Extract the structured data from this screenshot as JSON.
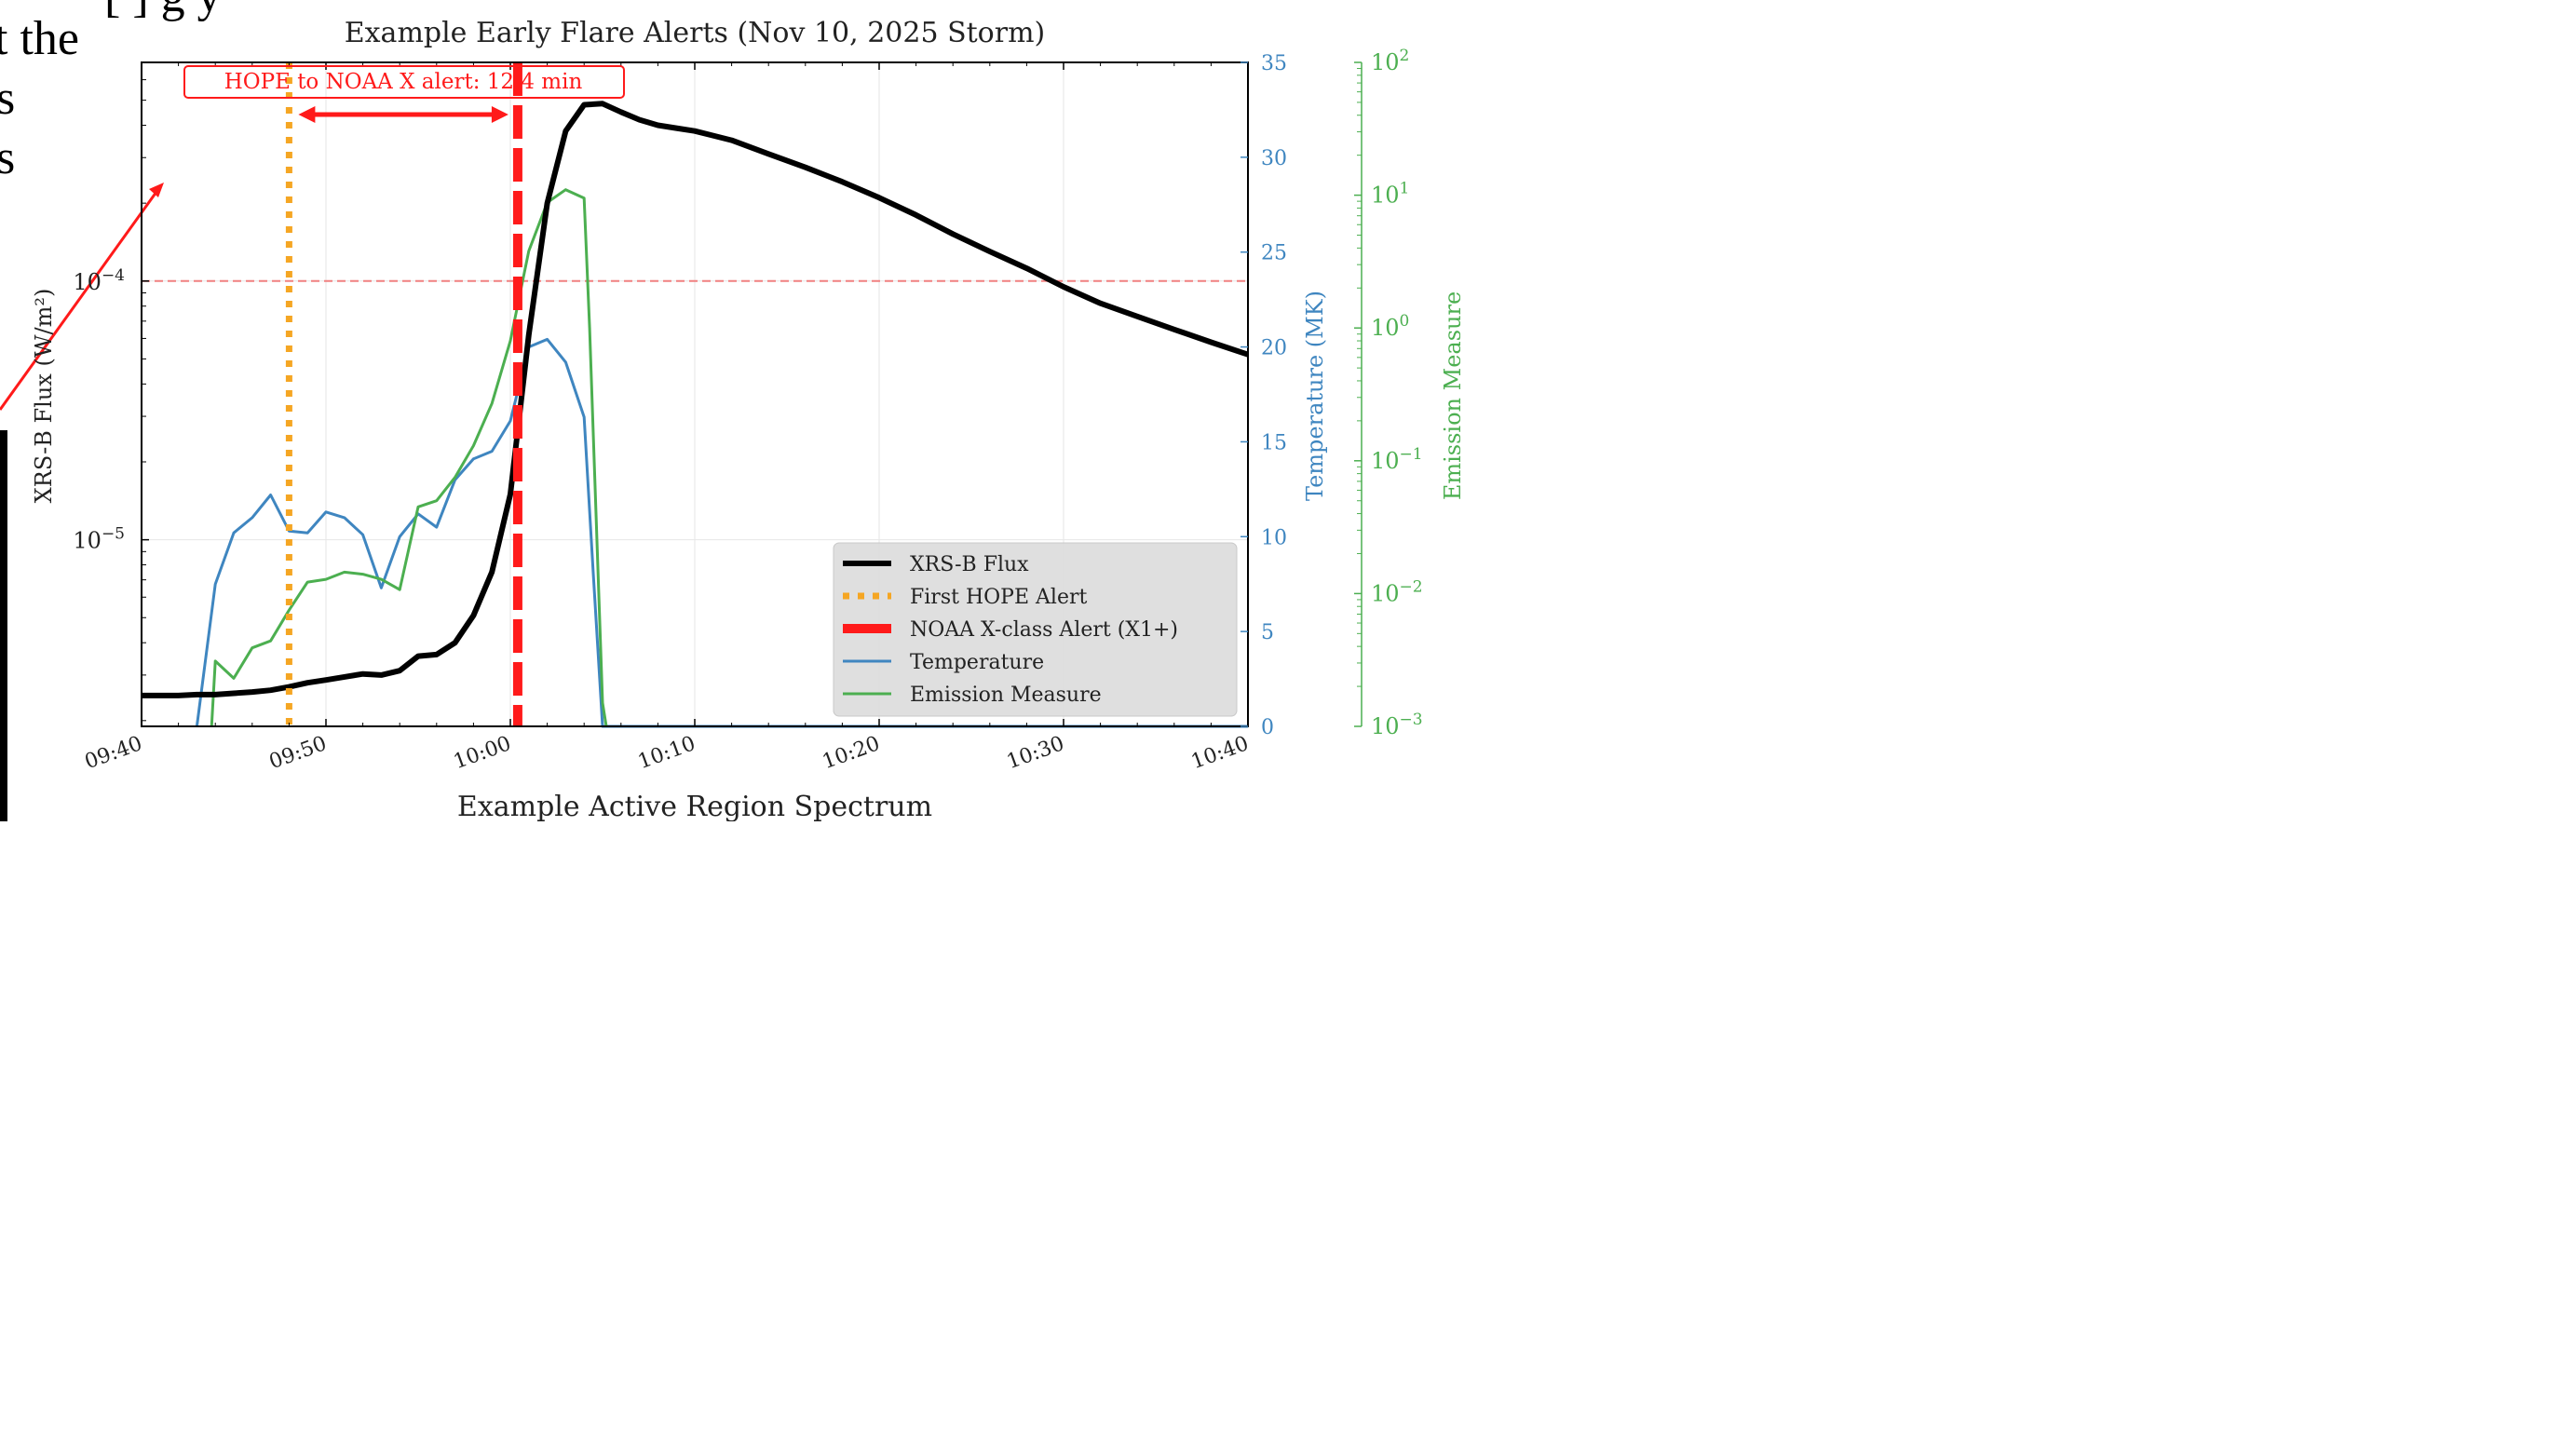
{
  "bg_fragments": {
    "top": "[  ]  g  y",
    "line1": "t the",
    "line2": "s",
    "line3": "s"
  },
  "chart_data": {
    "type": "line",
    "title": "Example Early Flare Alerts (Nov 10, 2025 Storm)",
    "xlabel": "Example Active Region Spectrum",
    "ylabel_left": "XRS-B Flux (W/m²)",
    "ylabel_right1": "Temperature (MK)",
    "ylabel_right2": "Emission Measure",
    "x_unit": "minutes after 09:40",
    "xlim": [
      0,
      60
    ],
    "x_ticks": [
      "09:40",
      "09:50",
      "10:00",
      "10:10",
      "10:20",
      "10:30",
      "10:40"
    ],
    "y_left": {
      "scale": "log",
      "range": [
        1.9e-06,
        0.0007
      ],
      "ticks": [
        {
          "value": 1e-05,
          "label": "10",
          "exp": "−5"
        },
        {
          "value": 0.0001,
          "label": "10",
          "exp": "−4"
        }
      ]
    },
    "y_right1": {
      "scale": "linear",
      "range": [
        0,
        35
      ],
      "ticks": [
        "0",
        "5",
        "10",
        "15",
        "20",
        "25",
        "30",
        "35"
      ]
    },
    "y_right2": {
      "scale": "log",
      "range": [
        0.001,
        100
      ],
      "ticks": [
        {
          "label": "10",
          "exp": "−3"
        },
        {
          "label": "10",
          "exp": "−2"
        },
        {
          "label": "10",
          "exp": "−1"
        },
        {
          "label": "10",
          "exp": "0"
        },
        {
          "label": "10",
          "exp": "1"
        },
        {
          "label": "10",
          "exp": "2"
        }
      ]
    },
    "threshold_flux": 0.0001,
    "first_hope_alert_x": 8.0,
    "noaa_alert_x": 20.4,
    "annotation": "HOPE to NOAA X alert: 12.4 min",
    "colors": {
      "flux": "#000000",
      "hope": "#f5a623",
      "noaa": "#ff1a1a",
      "temperature": "#3f86c0",
      "emission": "#4caf50",
      "threshold": "#f08080",
      "temp_axis": "#3f86c0",
      "em_axis": "#4caf50"
    },
    "legend_position": "lower right",
    "legend": [
      {
        "key": "flux",
        "label": "XRS-B Flux"
      },
      {
        "key": "hope",
        "label": "First HOPE Alert"
      },
      {
        "key": "noaa",
        "label": "NOAA X-class Alert (X1+)"
      },
      {
        "key": "temperature",
        "label": "Temperature"
      },
      {
        "key": "emission",
        "label": "Emission Measure"
      }
    ],
    "series": [
      {
        "name": "XRS-B Flux",
        "axis": "left",
        "x": [
          0,
          1,
          2,
          3,
          4,
          5,
          6,
          7,
          8,
          9,
          10,
          11,
          12,
          13,
          14,
          15,
          16,
          17,
          18,
          19,
          20,
          21,
          22,
          23,
          24,
          25,
          26,
          27,
          28,
          29,
          30,
          32,
          34,
          36,
          38,
          40,
          42,
          44,
          46,
          48,
          50,
          52,
          54,
          56,
          58,
          60
        ],
        "values": [
          2.5e-06,
          2.5e-06,
          2.5e-06,
          2.52e-06,
          2.52e-06,
          2.55e-06,
          2.58e-06,
          2.62e-06,
          2.7e-06,
          2.8e-06,
          2.87e-06,
          2.95e-06,
          3.03e-06,
          3e-06,
          3.12e-06,
          3.55e-06,
          3.6e-06,
          4e-06,
          5.1e-06,
          7.5e-06,
          1.5e-05,
          6.2e-05,
          0.0002,
          0.00038,
          0.00048,
          0.000485,
          0.00045,
          0.00042,
          0.0004,
          0.00039,
          0.00038,
          0.00035,
          0.00031,
          0.000275,
          0.000242,
          0.00021,
          0.00018,
          0.000152,
          0.00013,
          0.000112,
          9.5e-05,
          8.2e-05,
          7.3e-05,
          6.5e-05,
          5.8e-05,
          5.2e-05
        ]
      },
      {
        "name": "Temperature",
        "axis": "right1",
        "x": [
          3,
          4,
          5,
          6,
          7,
          8,
          9,
          10,
          11,
          12,
          13,
          14,
          15,
          16,
          17,
          18,
          19,
          20,
          21,
          22,
          23,
          24,
          24.5,
          25,
          26,
          30,
          40,
          50,
          60
        ],
        "values": [
          0,
          7.5,
          10.2,
          11.0,
          12.2,
          10.3,
          10.2,
          11.3,
          11.0,
          10.1,
          7.3,
          10.0,
          11.2,
          10.5,
          13.0,
          14.1,
          14.5,
          16.1,
          20.0,
          20.4,
          19.2,
          16.3,
          8.0,
          0,
          0,
          0,
          0,
          0,
          0
        ]
      },
      {
        "name": "Emission Measure",
        "axis": "right2",
        "x": [
          3.8,
          4,
          5,
          6,
          7,
          8,
          9,
          10,
          11,
          12,
          13,
          14,
          15,
          16,
          17,
          18,
          19,
          20,
          21,
          22,
          23,
          24,
          24.3,
          25,
          25.2
        ],
        "values": [
          0.001,
          0.0031,
          0.0023,
          0.0039,
          0.0044,
          0.0075,
          0.0122,
          0.0128,
          0.0145,
          0.014,
          0.0128,
          0.0107,
          0.045,
          0.05,
          0.075,
          0.13,
          0.27,
          0.8,
          3.8,
          8.8,
          11.0,
          9.5,
          1.0,
          0.0015,
          0.001
        ]
      }
    ]
  }
}
